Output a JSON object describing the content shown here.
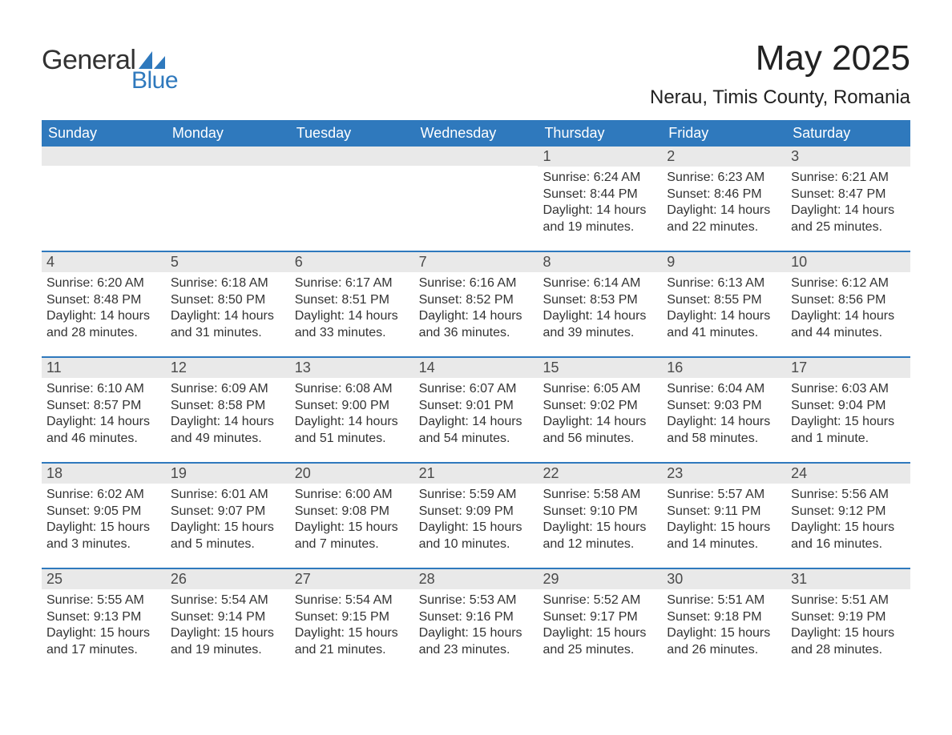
{
  "logo": {
    "text_general": "General",
    "text_blue": "Blue"
  },
  "title": "May 2025",
  "location": "Nerau, Timis County, Romania",
  "colors": {
    "header_bg": "#2f79bd",
    "header_text": "#ffffff",
    "daynum_bg": "#e9e9e9",
    "text": "#333333",
    "row_border": "#2f79bd",
    "logo_blue": "#2f79bd",
    "logo_gray": "#323232"
  },
  "days_of_week": [
    "Sunday",
    "Monday",
    "Tuesday",
    "Wednesday",
    "Thursday",
    "Friday",
    "Saturday"
  ],
  "weeks": [
    [
      {
        "blank": true
      },
      {
        "blank": true
      },
      {
        "blank": true
      },
      {
        "blank": true
      },
      {
        "n": "1",
        "sunrise": "Sunrise: 6:24 AM",
        "sunset": "Sunset: 8:44 PM",
        "daylight": "Daylight: 14 hours and 19 minutes."
      },
      {
        "n": "2",
        "sunrise": "Sunrise: 6:23 AM",
        "sunset": "Sunset: 8:46 PM",
        "daylight": "Daylight: 14 hours and 22 minutes."
      },
      {
        "n": "3",
        "sunrise": "Sunrise: 6:21 AM",
        "sunset": "Sunset: 8:47 PM",
        "daylight": "Daylight: 14 hours and 25 minutes."
      }
    ],
    [
      {
        "n": "4",
        "sunrise": "Sunrise: 6:20 AM",
        "sunset": "Sunset: 8:48 PM",
        "daylight": "Daylight: 14 hours and 28 minutes."
      },
      {
        "n": "5",
        "sunrise": "Sunrise: 6:18 AM",
        "sunset": "Sunset: 8:50 PM",
        "daylight": "Daylight: 14 hours and 31 minutes."
      },
      {
        "n": "6",
        "sunrise": "Sunrise: 6:17 AM",
        "sunset": "Sunset: 8:51 PM",
        "daylight": "Daylight: 14 hours and 33 minutes."
      },
      {
        "n": "7",
        "sunrise": "Sunrise: 6:16 AM",
        "sunset": "Sunset: 8:52 PM",
        "daylight": "Daylight: 14 hours and 36 minutes."
      },
      {
        "n": "8",
        "sunrise": "Sunrise: 6:14 AM",
        "sunset": "Sunset: 8:53 PM",
        "daylight": "Daylight: 14 hours and 39 minutes."
      },
      {
        "n": "9",
        "sunrise": "Sunrise: 6:13 AM",
        "sunset": "Sunset: 8:55 PM",
        "daylight": "Daylight: 14 hours and 41 minutes."
      },
      {
        "n": "10",
        "sunrise": "Sunrise: 6:12 AM",
        "sunset": "Sunset: 8:56 PM",
        "daylight": "Daylight: 14 hours and 44 minutes."
      }
    ],
    [
      {
        "n": "11",
        "sunrise": "Sunrise: 6:10 AM",
        "sunset": "Sunset: 8:57 PM",
        "daylight": "Daylight: 14 hours and 46 minutes."
      },
      {
        "n": "12",
        "sunrise": "Sunrise: 6:09 AM",
        "sunset": "Sunset: 8:58 PM",
        "daylight": "Daylight: 14 hours and 49 minutes."
      },
      {
        "n": "13",
        "sunrise": "Sunrise: 6:08 AM",
        "sunset": "Sunset: 9:00 PM",
        "daylight": "Daylight: 14 hours and 51 minutes."
      },
      {
        "n": "14",
        "sunrise": "Sunrise: 6:07 AM",
        "sunset": "Sunset: 9:01 PM",
        "daylight": "Daylight: 14 hours and 54 minutes."
      },
      {
        "n": "15",
        "sunrise": "Sunrise: 6:05 AM",
        "sunset": "Sunset: 9:02 PM",
        "daylight": "Daylight: 14 hours and 56 minutes."
      },
      {
        "n": "16",
        "sunrise": "Sunrise: 6:04 AM",
        "sunset": "Sunset: 9:03 PM",
        "daylight": "Daylight: 14 hours and 58 minutes."
      },
      {
        "n": "17",
        "sunrise": "Sunrise: 6:03 AM",
        "sunset": "Sunset: 9:04 PM",
        "daylight": "Daylight: 15 hours and 1 minute."
      }
    ],
    [
      {
        "n": "18",
        "sunrise": "Sunrise: 6:02 AM",
        "sunset": "Sunset: 9:05 PM",
        "daylight": "Daylight: 15 hours and 3 minutes."
      },
      {
        "n": "19",
        "sunrise": "Sunrise: 6:01 AM",
        "sunset": "Sunset: 9:07 PM",
        "daylight": "Daylight: 15 hours and 5 minutes."
      },
      {
        "n": "20",
        "sunrise": "Sunrise: 6:00 AM",
        "sunset": "Sunset: 9:08 PM",
        "daylight": "Daylight: 15 hours and 7 minutes."
      },
      {
        "n": "21",
        "sunrise": "Sunrise: 5:59 AM",
        "sunset": "Sunset: 9:09 PM",
        "daylight": "Daylight: 15 hours and 10 minutes."
      },
      {
        "n": "22",
        "sunrise": "Sunrise: 5:58 AM",
        "sunset": "Sunset: 9:10 PM",
        "daylight": "Daylight: 15 hours and 12 minutes."
      },
      {
        "n": "23",
        "sunrise": "Sunrise: 5:57 AM",
        "sunset": "Sunset: 9:11 PM",
        "daylight": "Daylight: 15 hours and 14 minutes."
      },
      {
        "n": "24",
        "sunrise": "Sunrise: 5:56 AM",
        "sunset": "Sunset: 9:12 PM",
        "daylight": "Daylight: 15 hours and 16 minutes."
      }
    ],
    [
      {
        "n": "25",
        "sunrise": "Sunrise: 5:55 AM",
        "sunset": "Sunset: 9:13 PM",
        "daylight": "Daylight: 15 hours and 17 minutes."
      },
      {
        "n": "26",
        "sunrise": "Sunrise: 5:54 AM",
        "sunset": "Sunset: 9:14 PM",
        "daylight": "Daylight: 15 hours and 19 minutes."
      },
      {
        "n": "27",
        "sunrise": "Sunrise: 5:54 AM",
        "sunset": "Sunset: 9:15 PM",
        "daylight": "Daylight: 15 hours and 21 minutes."
      },
      {
        "n": "28",
        "sunrise": "Sunrise: 5:53 AM",
        "sunset": "Sunset: 9:16 PM",
        "daylight": "Daylight: 15 hours and 23 minutes."
      },
      {
        "n": "29",
        "sunrise": "Sunrise: 5:52 AM",
        "sunset": "Sunset: 9:17 PM",
        "daylight": "Daylight: 15 hours and 25 minutes."
      },
      {
        "n": "30",
        "sunrise": "Sunrise: 5:51 AM",
        "sunset": "Sunset: 9:18 PM",
        "daylight": "Daylight: 15 hours and 26 minutes."
      },
      {
        "n": "31",
        "sunrise": "Sunrise: 5:51 AM",
        "sunset": "Sunset: 9:19 PM",
        "daylight": "Daylight: 15 hours and 28 minutes."
      }
    ]
  ]
}
